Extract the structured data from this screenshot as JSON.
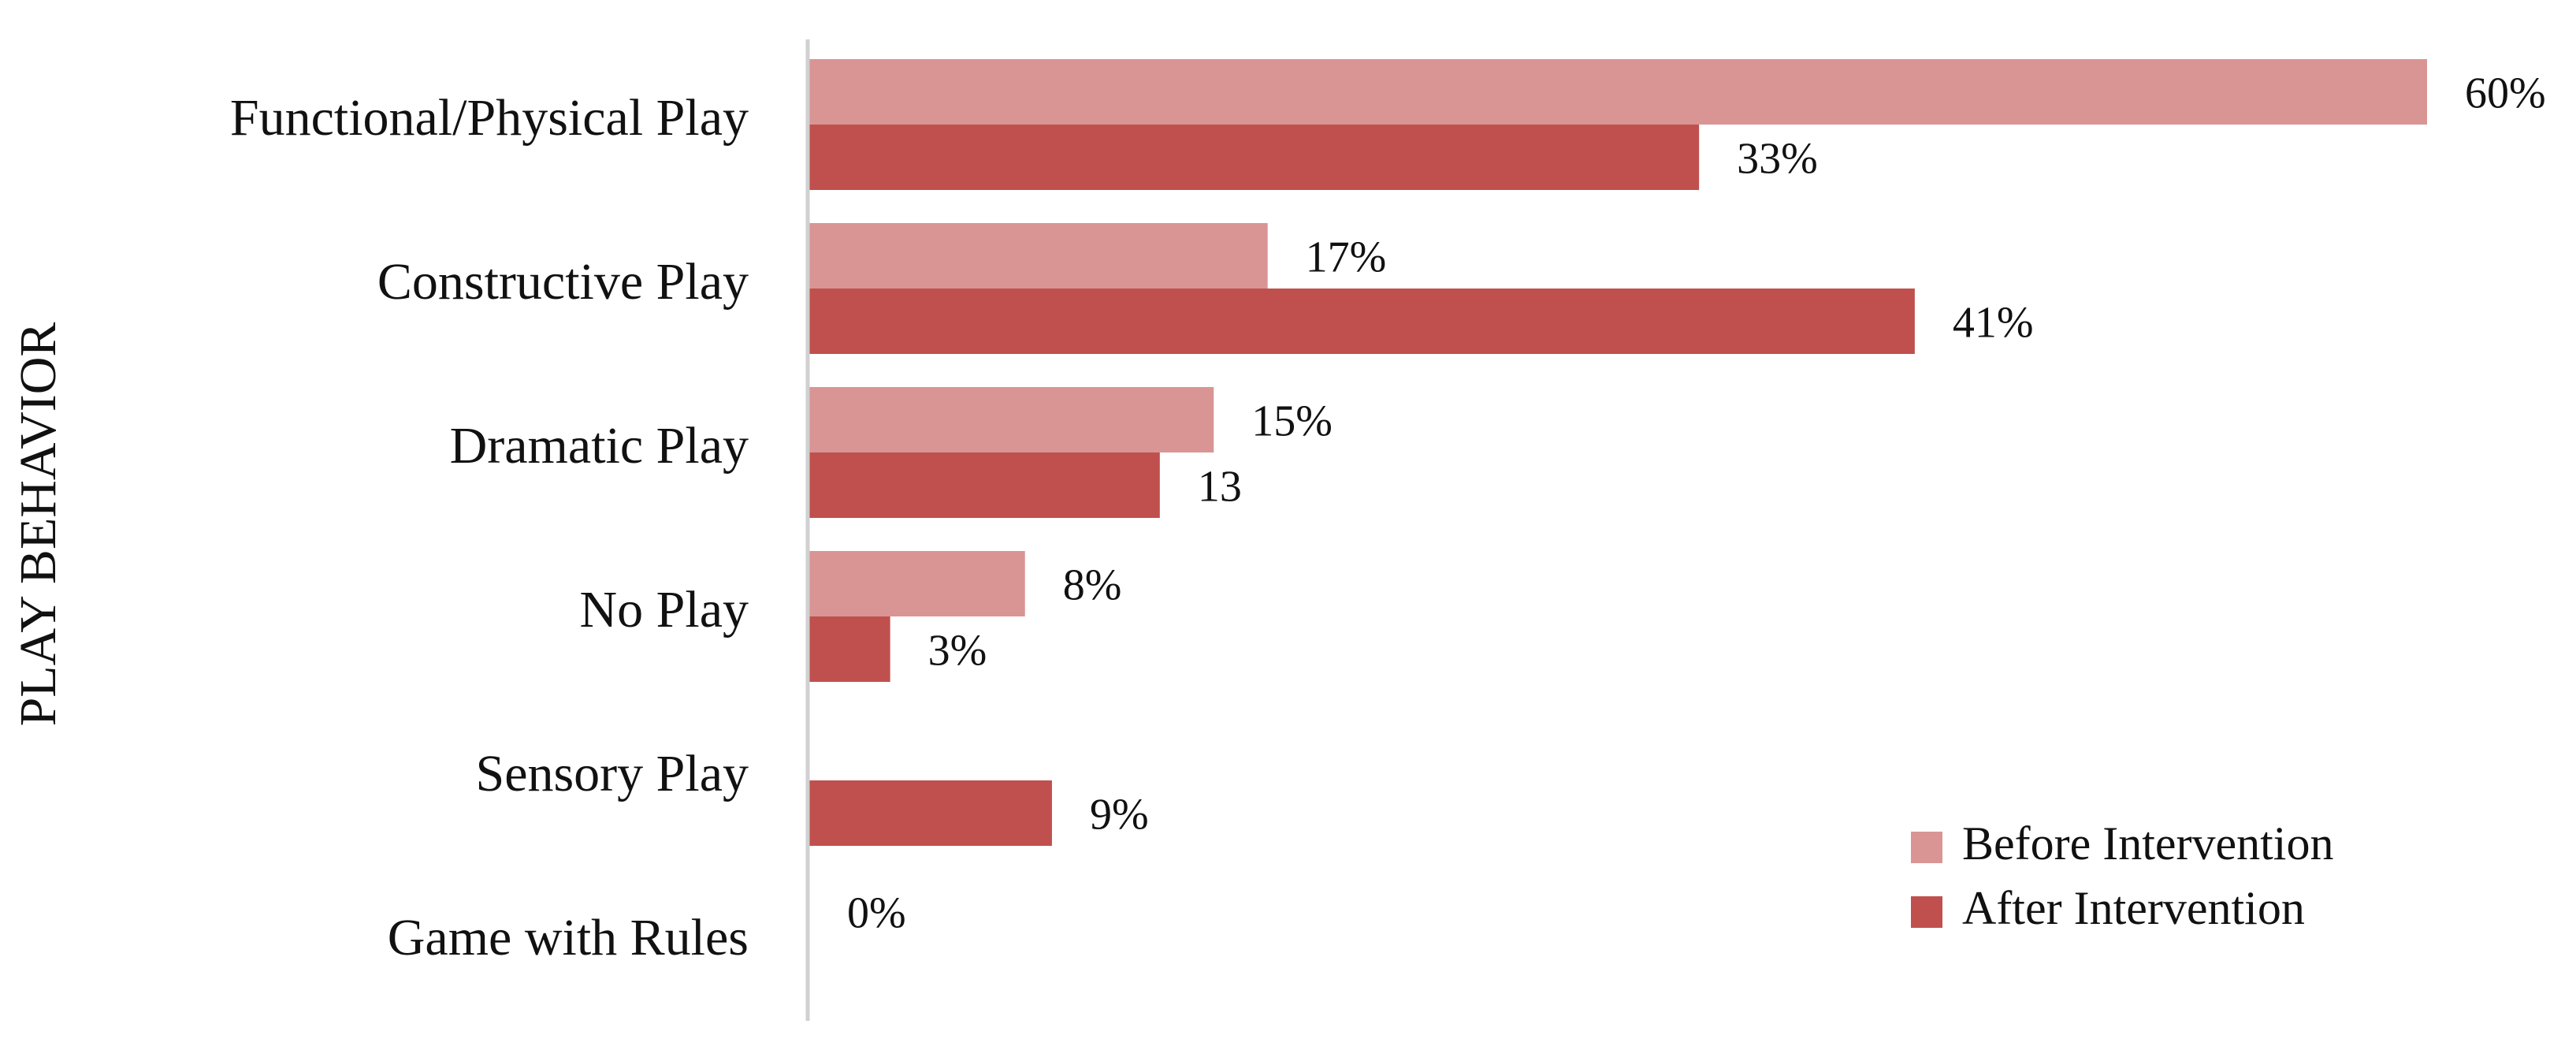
{
  "chart_data": {
    "type": "bar",
    "orientation": "horizontal",
    "ylabel": "PLAY BEHAVIOR",
    "xlabel": "",
    "xlim": [
      0,
      60
    ],
    "grid": false,
    "legend_position": "bottom-right",
    "categories": [
      "Functional/Physical Play",
      "Constructive Play",
      "Dramatic Play",
      "No Play",
      "Sensory Play",
      "Game with Rules"
    ],
    "series": [
      {
        "name": "Before Intervention",
        "color": "#d99594",
        "values": [
          60,
          17,
          15,
          8,
          0,
          0
        ],
        "labels": [
          "60%",
          "17%",
          "15%",
          "8%",
          "",
          "0%"
        ]
      },
      {
        "name": "After Intervention",
        "color": "#c0504d",
        "values": [
          33,
          41,
          13,
          3,
          9,
          0
        ],
        "labels": [
          "33%",
          "41%",
          "13",
          "3%",
          "9%",
          ""
        ]
      }
    ]
  }
}
